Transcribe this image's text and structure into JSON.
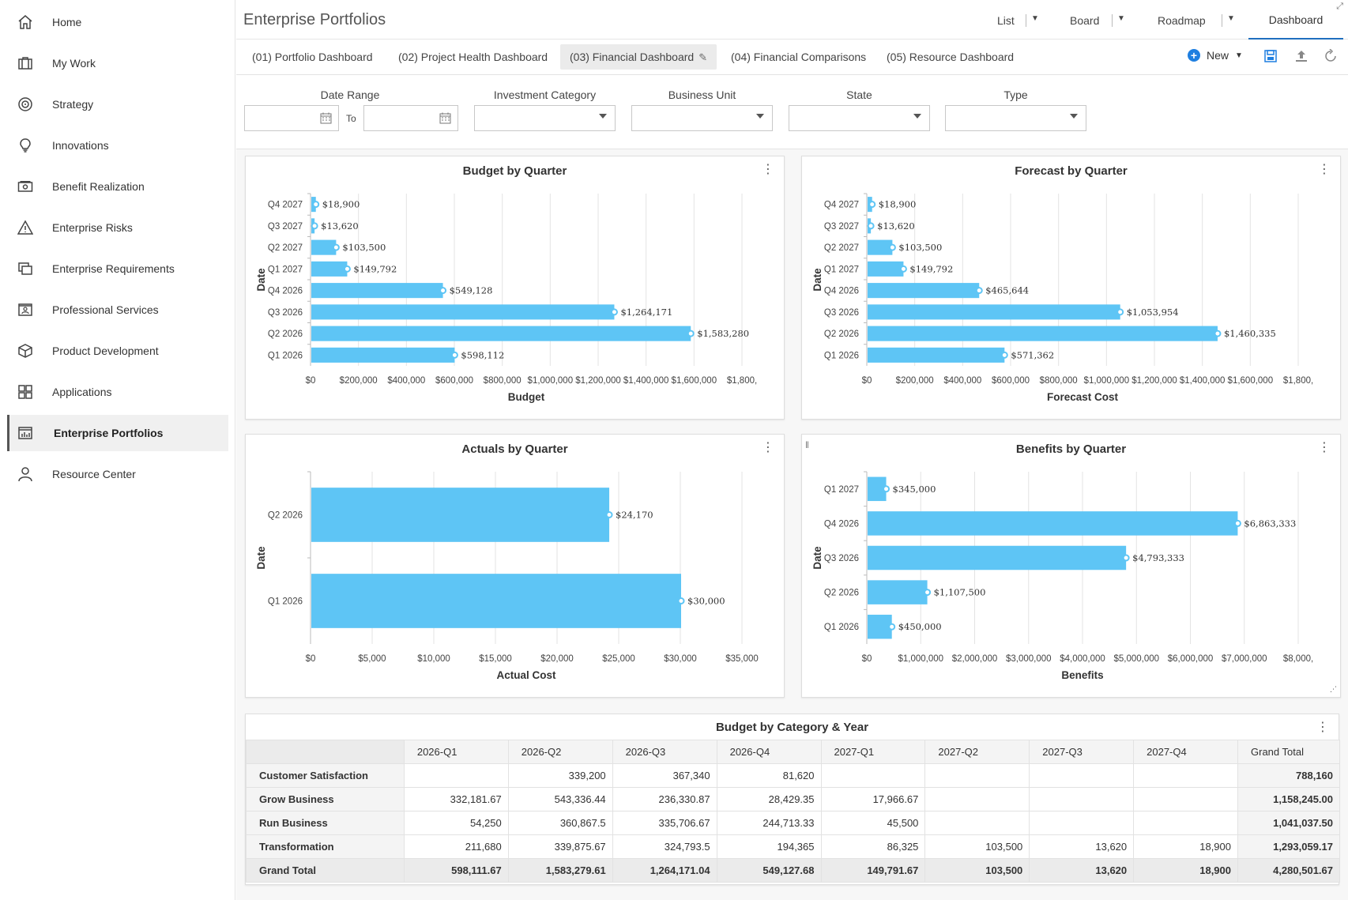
{
  "sidebar": {
    "items": [
      {
        "label": "Home",
        "icon": "home-icon"
      },
      {
        "label": "My Work",
        "icon": "briefcase-icon"
      },
      {
        "label": "Strategy",
        "icon": "target-icon"
      },
      {
        "label": "Innovations",
        "icon": "lightbulb-icon"
      },
      {
        "label": "Benefit Realization",
        "icon": "money-icon"
      },
      {
        "label": "Enterprise Risks",
        "icon": "warning-icon"
      },
      {
        "label": "Enterprise Requirements",
        "icon": "requirements-icon"
      },
      {
        "label": "Professional Services",
        "icon": "id-card-icon"
      },
      {
        "label": "Product Development",
        "icon": "package-icon"
      },
      {
        "label": "Applications",
        "icon": "grid-icon"
      },
      {
        "label": "Enterprise Portfolios",
        "icon": "chart-icon",
        "active": true
      },
      {
        "label": "Resource Center",
        "icon": "user-icon"
      }
    ]
  },
  "header": {
    "title": "Enterprise Portfolios",
    "views": [
      "List",
      "Board",
      "Roadmap",
      "Dashboard"
    ],
    "active_view": "Dashboard"
  },
  "tabs": [
    "(01) Portfolio Dashboard",
    "(02) Project Health Dashboard",
    "(03) Financial Dashboard",
    "(04) Financial Comparisons",
    "(05) Resource Dashboard"
  ],
  "active_tab": 2,
  "toolbar": {
    "new_label": "New"
  },
  "filters": {
    "date_range": "Date Range",
    "to": "To",
    "investment_category": "Investment Category",
    "business_unit": "Business Unit",
    "state": "State",
    "type": "Type"
  },
  "chart_data": [
    {
      "type": "bar",
      "title": "Budget by Quarter",
      "xlabel": "Budget",
      "ylabel": "Date",
      "categories": [
        "Q4 2027",
        "Q3 2027",
        "Q2 2027",
        "Q1 2027",
        "Q4 2026",
        "Q3 2026",
        "Q2 2026",
        "Q1 2026"
      ],
      "values": [
        18900,
        13620,
        103500,
        149792,
        549128,
        1264171,
        1583280,
        598112
      ],
      "value_labels": [
        "$18,900",
        "$13,620",
        "$103,500",
        "$149,792",
        "$549,128",
        "$1,264,171",
        "$1,583,280",
        "$598,112"
      ],
      "xlim": [
        0,
        1800000
      ],
      "ticks": [
        "$0",
        "$200,000",
        "$400,000",
        "$600,000",
        "$800,000",
        "$1,000,000",
        "$1,200,000",
        "$1,400,000",
        "$1,600,000",
        "$1,800,"
      ],
      "grid": true
    },
    {
      "type": "bar",
      "title": "Forecast by Quarter",
      "xlabel": "Forecast Cost",
      "ylabel": "Date",
      "categories": [
        "Q4 2027",
        "Q3 2027",
        "Q2 2027",
        "Q1 2027",
        "Q4 2026",
        "Q3 2026",
        "Q2 2026",
        "Q1 2026"
      ],
      "values": [
        18900,
        13620,
        103500,
        149792,
        465644,
        1053954,
        1460335,
        571362
      ],
      "value_labels": [
        "$18,900",
        "$13,620",
        "$103,500",
        "$149,792",
        "$465,644",
        "$1,053,954",
        "$1,460,335",
        "$571,362"
      ],
      "xlim": [
        0,
        1800000
      ],
      "ticks": [
        "$0",
        "$200,000",
        "$400,000",
        "$600,000",
        "$800,000",
        "$1,000,000",
        "$1,200,000",
        "$1,400,000",
        "$1,600,000",
        "$1,800,"
      ],
      "grid": true
    },
    {
      "type": "bar",
      "title": "Actuals by Quarter",
      "xlabel": "Actual Cost",
      "ylabel": "Date",
      "categories": [
        "Q2 2026",
        "Q1 2026"
      ],
      "values": [
        24170,
        30000
      ],
      "value_labels": [
        "$24,170",
        "$30,000"
      ],
      "xlim": [
        0,
        35000
      ],
      "ticks": [
        "$0",
        "$5,000",
        "$10,000",
        "$15,000",
        "$20,000",
        "$25,000",
        "$30,000",
        "$35,000"
      ],
      "grid": true
    },
    {
      "type": "bar",
      "title": "Benefits by Quarter",
      "xlabel": "Benefits",
      "ylabel": "Date",
      "categories": [
        "Q1 2027",
        "Q4 2026",
        "Q3 2026",
        "Q2 2026",
        "Q1 2026"
      ],
      "values": [
        345000,
        6863333,
        4793333,
        1107500,
        450000
      ],
      "value_labels": [
        "$345,000",
        "$6,863,333",
        "$4,793,333",
        "$1,107,500",
        "$450,000"
      ],
      "xlim": [
        0,
        8000000
      ],
      "ticks": [
        "$0",
        "$1,000,000",
        "$2,000,000",
        "$3,000,000",
        "$4,000,000",
        "$5,000,000",
        "$6,000,000",
        "$7,000,000",
        "$8,000,"
      ],
      "grid": true
    },
    {
      "type": "table",
      "title": "Budget by Category & Year",
      "columns": [
        "",
        "2026-Q1",
        "2026-Q2",
        "2026-Q3",
        "2026-Q4",
        "2027-Q1",
        "2027-Q2",
        "2027-Q3",
        "2027-Q4",
        "Grand Total"
      ],
      "rows": [
        [
          "Customer Satisfaction",
          "",
          "339,200",
          "367,340",
          "81,620",
          "",
          "",
          "",
          "",
          "788,160"
        ],
        [
          "Grow Business",
          "332,181.67",
          "543,336.44",
          "236,330.87",
          "28,429.35",
          "17,966.67",
          "",
          "",
          "",
          "1,158,245.00"
        ],
        [
          "Run Business",
          "54,250",
          "360,867.5",
          "335,706.67",
          "244,713.33",
          "45,500",
          "",
          "",
          "",
          "1,041,037.50"
        ],
        [
          "Transformation",
          "211,680",
          "339,875.67",
          "324,793.5",
          "194,365",
          "86,325",
          "103,500",
          "13,620",
          "18,900",
          "1,293,059.17"
        ],
        [
          "Grand Total",
          "598,111.67",
          "1,583,279.61",
          "1,264,171.04",
          "549,127.68",
          "149,791.67",
          "103,500",
          "13,620",
          "18,900",
          "4,280,501.67"
        ]
      ]
    }
  ],
  "colors": {
    "bar": "#5ec5f5",
    "accent": "#1f6fbf",
    "grid": "#e3e3e3"
  }
}
